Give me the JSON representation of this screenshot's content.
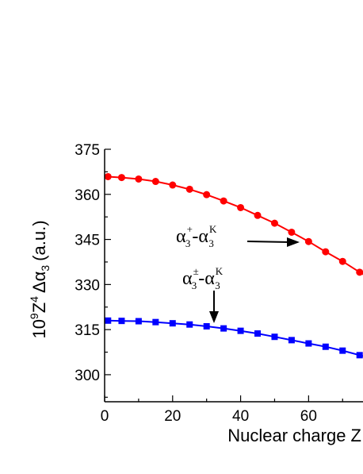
{
  "chart_data": {
    "type": "line",
    "xlabel": "Nuclear charge Z",
    "ylabel": {
      "prefix_base": "10",
      "prefix_exp": "9",
      "z_base": "Z",
      "z_exp": "4",
      "delta": "Δα",
      "sub": "3",
      "unit": "(a.u.)"
    },
    "xlim": [
      0,
      76
    ],
    "ylim": [
      291,
      375
    ],
    "x_ticks": [
      0,
      20,
      40,
      60
    ],
    "y_ticks": [
      300,
      315,
      330,
      345,
      360,
      375
    ],
    "grid": false,
    "colors": {
      "upper": "#ff0000",
      "lower": "#0000ff"
    },
    "series": [
      {
        "marker": "circle",
        "x": [
          1,
          5,
          10,
          15,
          20,
          25,
          30,
          35,
          40,
          45,
          50,
          55,
          60,
          65,
          70,
          75
        ],
        "y": [
          365.9,
          365.6,
          365.1,
          364.3,
          363.1,
          361.7,
          359.9,
          357.8,
          355.6,
          353.0,
          350.4,
          347.4,
          344.3,
          340.9,
          337.7,
          334.1
        ]
      },
      {
        "marker": "square",
        "x": [
          1,
          5,
          10,
          15,
          20,
          25,
          30,
          35,
          40,
          45,
          50,
          55,
          60,
          65,
          70,
          75
        ],
        "y": [
          318.0,
          317.9,
          317.8,
          317.5,
          317.1,
          316.7,
          316.1,
          315.4,
          314.6,
          313.7,
          312.6,
          311.5,
          310.4,
          309.3,
          308.0,
          306.5
        ]
      }
    ],
    "annotations": [
      {
        "base1": "α",
        "sup1": "+",
        "sub1": "3",
        "dash": "-",
        "base2": "α",
        "sup2": "K",
        "sub2": "3"
      },
      {
        "base1": "α",
        "sup1": "±",
        "sub1": "3",
        "dash": "-",
        "base2": "α",
        "sup2": "K",
        "sub2": "3"
      }
    ]
  }
}
